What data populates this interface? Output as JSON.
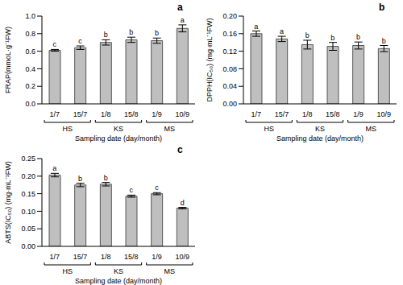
{
  "chart_data": [
    {
      "type": "bar",
      "panel": "a",
      "y_label": "FRAP(mmoL·g⁻¹FW)",
      "x_label": "Sampling date (day/month)",
      "categories": [
        "1/7",
        "15/7",
        "1/8",
        "15/8",
        "1/9",
        "10/9"
      ],
      "values": [
        0.61,
        0.64,
        0.7,
        0.73,
        0.72,
        0.86
      ],
      "errors": [
        0.01,
        0.02,
        0.03,
        0.03,
        0.03,
        0.04
      ],
      "annotations": [
        "c",
        "c",
        "b",
        "b",
        "b",
        "a"
      ],
      "groups": [
        {
          "label": "HS",
          "categories": [
            "1/7",
            "15/7"
          ]
        },
        {
          "label": "KS",
          "categories": [
            "1/8",
            "15/8"
          ]
        },
        {
          "label": "MS",
          "categories": [
            "1/9",
            "10/9"
          ]
        }
      ],
      "color": "#bfbfbf",
      "ylim": [
        0,
        1.0
      ],
      "yticks": [
        {
          "value": 0,
          "label": "0.0"
        },
        0.2,
        0.4,
        0.6,
        0.8,
        {
          "value": 1.0,
          "label": "1.0"
        }
      ],
      "grid": false
    },
    {
      "type": "bar",
      "panel": "b",
      "y_label": "DPPH(IC₅₀) (mg·mL⁻¹FW)",
      "x_label": "Sampling date (day/month)",
      "categories": [
        "1/7",
        "15/7",
        "1/8",
        "15/8",
        "1/9",
        "10/9"
      ],
      "values": [
        0.16,
        0.148,
        0.135,
        0.131,
        0.133,
        0.126
      ],
      "errors": [
        0.006,
        0.006,
        0.01,
        0.009,
        0.008,
        0.007
      ],
      "annotations": [
        "a",
        "a",
        "b",
        "b",
        "b",
        "b"
      ],
      "groups": [
        {
          "label": "HS",
          "categories": [
            "1/7",
            "15/7"
          ]
        },
        {
          "label": "KS",
          "categories": [
            "1/8",
            "15/8"
          ]
        },
        {
          "label": "MS",
          "categories": [
            "1/9",
            "10/9"
          ]
        }
      ],
      "color": "#bfbfbf",
      "ylim": [
        0,
        0.2
      ],
      "yticks": [
        {
          "value": 0,
          "label": "0.00"
        },
        {
          "value": 0.04,
          "label": "0.04"
        },
        {
          "value": 0.08,
          "label": "0.08"
        },
        {
          "value": 0.12,
          "label": "0.12"
        },
        {
          "value": 0.16,
          "label": "0.16"
        },
        {
          "value": 0.2,
          "label": "0.20"
        }
      ],
      "grid": false
    },
    {
      "type": "bar",
      "panel": "c",
      "y_label": "ABTS(IC₅₀) (mg·mL⁻¹FW)",
      "x_label": "Sampling date (day/month)",
      "categories": [
        "1/7",
        "15/7",
        "1/8",
        "15/8",
        "1/9",
        "10/9"
      ],
      "values": [
        0.203,
        0.175,
        0.177,
        0.143,
        0.15,
        0.109
      ],
      "errors": [
        0.005,
        0.005,
        0.005,
        0.003,
        0.003,
        0.002
      ],
      "annotations": [
        "a",
        "b",
        "b",
        "c",
        "c",
        "d"
      ],
      "groups": [
        {
          "label": "HS",
          "categories": [
            "1/7",
            "15/7"
          ]
        },
        {
          "label": "KS",
          "categories": [
            "1/8",
            "15/8"
          ]
        },
        {
          "label": "MS",
          "categories": [
            "1/9",
            "10/9"
          ]
        }
      ],
      "color": "#bfbfbf",
      "ylim": [
        0,
        0.25
      ],
      "yticks": [
        {
          "value": 0,
          "label": "0.00"
        },
        {
          "value": 0.05,
          "label": "0.05"
        },
        {
          "value": 0.1,
          "label": "0.10"
        },
        {
          "value": 0.15,
          "label": "0.15"
        },
        {
          "value": 0.2,
          "label": "0.20"
        },
        {
          "value": 0.25,
          "label": "0.25"
        }
      ],
      "grid": false
    }
  ]
}
